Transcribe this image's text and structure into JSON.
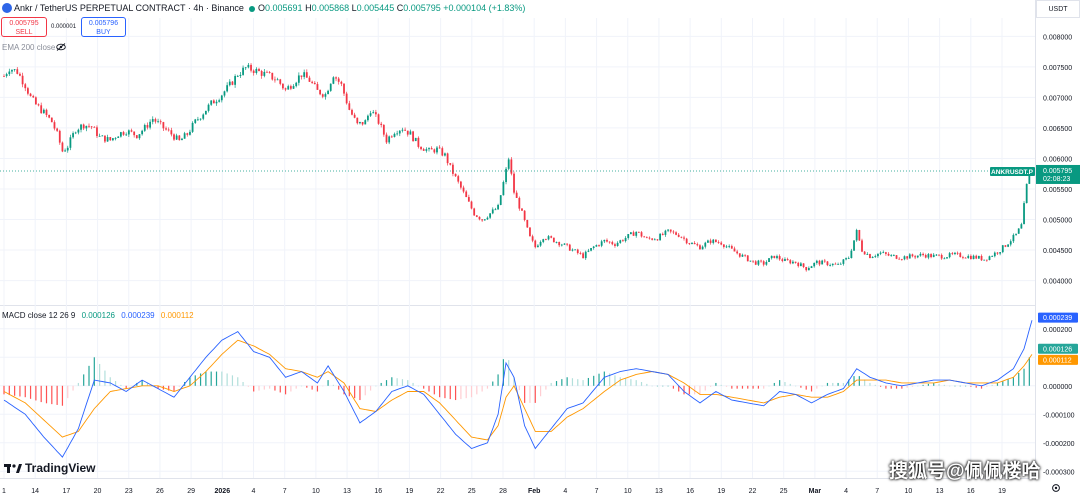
{
  "header": {
    "title": "Ankr / TetherUS PERPETUAL CONTRACT · 4h · Binance",
    "ohlc": [
      {
        "label": "O",
        "value": "0.005691"
      },
      {
        "label": "H",
        "value": "0.005868"
      },
      {
        "label": "L",
        "value": "0.005445"
      },
      {
        "label": "C",
        "value": "0.005795"
      }
    ],
    "change": "+0.000104 (+1.83%)"
  },
  "trade": {
    "sell_price": "0.005795",
    "sell_label": "SELL",
    "spread": "0.000001",
    "buy_price": "0.005796",
    "buy_label": "BUY"
  },
  "ema_label": "EMA 200 close",
  "currency": "USDT",
  "macd_legend": {
    "label": "MACD close 12 26 9",
    "histogram": "0.000126",
    "macd": "0.000239",
    "signal": "0.000112"
  },
  "brand": "TradingView",
  "watermark": "搜狐号@佩佩楼哈",
  "colors": {
    "up": "#089981",
    "down": "#f23645",
    "macd": "#2962ff",
    "signal": "#ff9800",
    "grid": "#f0f3fa",
    "text": "#131722"
  },
  "chart_data": {
    "type": "candlestick",
    "timeframe": "4h",
    "price_axis": {
      "ticks": [
        "0.008000",
        "0.007500",
        "0.007000",
        "0.006500",
        "0.006000",
        "0.005500",
        "0.005000",
        "0.004500",
        "0.004000"
      ],
      "range": [
        0.0036,
        0.0083
      ],
      "last_price_label": "0.005795",
      "symbol_label": "ANKRUSDT.P",
      "countdown": "02:08:23"
    },
    "time_axis": {
      "ticks": [
        "1",
        "14",
        "17",
        "20",
        "23",
        "26",
        "29",
        "2026",
        "4",
        "7",
        "10",
        "13",
        "16",
        "19",
        "22",
        "25",
        "28",
        "Feb",
        "4",
        "7",
        "10",
        "13",
        "16",
        "19",
        "22",
        "25",
        "Mar",
        "4",
        "7",
        "10",
        "13",
        "16",
        "19"
      ]
    },
    "price_path": [
      [
        0,
        0.00735
      ],
      [
        2,
        0.00748
      ],
      [
        5,
        0.00742
      ],
      [
        8,
        0.0072
      ],
      [
        10,
        0.007
      ],
      [
        12,
        0.00688
      ],
      [
        15,
        0.00675
      ],
      [
        18,
        0.0066
      ],
      [
        20,
        0.0064
      ],
      [
        22,
        0.00612
      ],
      [
        24,
        0.0062
      ],
      [
        27,
        0.00648
      ],
      [
        30,
        0.00655
      ],
      [
        33,
        0.00652
      ],
      [
        36,
        0.00635
      ],
      [
        40,
        0.0063
      ],
      [
        43,
        0.0064
      ],
      [
        46,
        0.00645
      ],
      [
        50,
        0.00638
      ],
      [
        53,
        0.0065
      ],
      [
        56,
        0.00665
      ],
      [
        60,
        0.0065
      ],
      [
        63,
        0.0064
      ],
      [
        66,
        0.00628
      ],
      [
        69,
        0.0064
      ],
      [
        72,
        0.0066
      ],
      [
        75,
        0.00675
      ],
      [
        78,
        0.0069
      ],
      [
        82,
        0.00705
      ],
      [
        85,
        0.0072
      ],
      [
        88,
        0.00738
      ],
      [
        91,
        0.00748
      ],
      [
        94,
        0.00745
      ],
      [
        97,
        0.0074
      ],
      [
        100,
        0.00735
      ],
      [
        103,
        0.00728
      ],
      [
        106,
        0.00712
      ],
      [
        109,
        0.00725
      ],
      [
        112,
        0.00738
      ],
      [
        115,
        0.00728
      ],
      [
        118,
        0.0071
      ],
      [
        121,
        0.00705
      ],
      [
        124,
        0.00738
      ],
      [
        127,
        0.0072
      ],
      [
        130,
        0.0068
      ],
      [
        133,
        0.00655
      ],
      [
        136,
        0.0066
      ],
      [
        138,
        0.0068
      ],
      [
        141,
        0.0066
      ],
      [
        144,
        0.0063
      ],
      [
        147,
        0.00645
      ],
      [
        150,
        0.0065
      ],
      [
        153,
        0.0064
      ],
      [
        156,
        0.00622
      ],
      [
        160,
        0.00612
      ],
      [
        163,
        0.00615
      ],
      [
        166,
        0.00605
      ],
      [
        168,
        0.00585
      ],
      [
        171,
        0.0056
      ],
      [
        174,
        0.00535
      ],
      [
        177,
        0.0051
      ],
      [
        180,
        0.005
      ],
      [
        183,
        0.0051
      ],
      [
        186,
        0.0052
      ],
      [
        188,
        0.0056
      ],
      [
        190,
        0.006
      ],
      [
        192,
        0.00545
      ],
      [
        195,
        0.0051
      ],
      [
        198,
        0.0047
      ],
      [
        200,
        0.00455
      ],
      [
        203,
        0.00472
      ],
      [
        206,
        0.00468
      ],
      [
        210,
        0.0046
      ],
      [
        214,
        0.0045
      ],
      [
        218,
        0.0044
      ],
      [
        222,
        0.00455
      ],
      [
        226,
        0.00465
      ],
      [
        230,
        0.0046
      ],
      [
        234,
        0.0047
      ],
      [
        238,
        0.0048
      ],
      [
        242,
        0.00468
      ],
      [
        246,
        0.0047
      ],
      [
        250,
        0.0048
      ],
      [
        254,
        0.00475
      ],
      [
        258,
        0.00462
      ],
      [
        262,
        0.00455
      ],
      [
        266,
        0.00465
      ],
      [
        270,
        0.00462
      ],
      [
        274,
        0.0045
      ],
      [
        278,
        0.0044
      ],
      [
        282,
        0.0043
      ],
      [
        286,
        0.00428
      ],
      [
        290,
        0.0044
      ],
      [
        294,
        0.00432
      ],
      [
        298,
        0.0043
      ],
      [
        302,
        0.0042
      ],
      [
        306,
        0.0043
      ],
      [
        310,
        0.00428
      ],
      [
        314,
        0.00425
      ],
      [
        318,
        0.00438
      ],
      [
        321,
        0.0048
      ],
      [
        323,
        0.0045
      ],
      [
        326,
        0.0044
      ],
      [
        330,
        0.00445
      ],
      [
        334,
        0.0044
      ],
      [
        338,
        0.00438
      ],
      [
        342,
        0.0044
      ],
      [
        346,
        0.00442
      ],
      [
        350,
        0.0044
      ],
      [
        354,
        0.0044
      ],
      [
        358,
        0.00442
      ],
      [
        362,
        0.0044
      ],
      [
        366,
        0.00438
      ],
      [
        369,
        0.00435
      ],
      [
        372,
        0.00442
      ],
      [
        375,
        0.0045
      ],
      [
        378,
        0.00462
      ],
      [
        381,
        0.00475
      ],
      [
        383,
        0.0049
      ],
      [
        385,
        0.00555
      ],
      [
        386,
        0.00575
      ],
      [
        387,
        0.0058
      ]
    ],
    "macd_axis": {
      "ticks": [
        "0.000200",
        "0.000100",
        "0.000000",
        "-0.000100",
        "-0.000200",
        "-0.000300"
      ],
      "range": [
        -0.00032,
        0.00028
      ]
    },
    "macd_line": [
      [
        0,
        -5e-05
      ],
      [
        8,
        -0.0001
      ],
      [
        15,
        -0.00018
      ],
      [
        22,
        -0.00025
      ],
      [
        28,
        -0.00015
      ],
      [
        34,
        2e-05
      ],
      [
        40,
        1e-05
      ],
      [
        46,
        -2e-05
      ],
      [
        52,
        2e-05
      ],
      [
        58,
        -1e-05
      ],
      [
        64,
        -4e-05
      ],
      [
        70,
        3e-05
      ],
      [
        76,
        0.0001
      ],
      [
        82,
        0.00016
      ],
      [
        88,
        0.00019
      ],
      [
        94,
        0.00012
      ],
      [
        100,
        0.0001
      ],
      [
        106,
        3e-05
      ],
      [
        112,
        5e-05
      ],
      [
        118,
        1e-05
      ],
      [
        122,
        7e-05
      ],
      [
        128,
        -2e-05
      ],
      [
        134,
        -0.00013
      ],
      [
        140,
        -9e-05
      ],
      [
        146,
        -2e-05
      ],
      [
        152,
        0.0
      ],
      [
        158,
        -3e-05
      ],
      [
        164,
        -0.0001
      ],
      [
        170,
        -0.00017
      ],
      [
        176,
        -0.00022
      ],
      [
        182,
        -0.0002
      ],
      [
        186,
        -0.0001
      ],
      [
        189,
        8e-05
      ],
      [
        192,
        3e-05
      ],
      [
        196,
        -0.00014
      ],
      [
        200,
        -0.00022
      ],
      [
        206,
        -0.00015
      ],
      [
        212,
        -8e-05
      ],
      [
        218,
        -6e-05
      ],
      [
        226,
        3e-05
      ],
      [
        232,
        5e-05
      ],
      [
        238,
        6e-05
      ],
      [
        244,
        5e-05
      ],
      [
        250,
        4e-05
      ],
      [
        256,
        -2e-05
      ],
      [
        262,
        -6e-05
      ],
      [
        268,
        -2e-05
      ],
      [
        274,
        -5e-05
      ],
      [
        280,
        -6e-05
      ],
      [
        286,
        -7e-05
      ],
      [
        292,
        -2e-05
      ],
      [
        298,
        -3e-05
      ],
      [
        304,
        -6e-05
      ],
      [
        310,
        -3e-05
      ],
      [
        316,
        -1e-05
      ],
      [
        321,
        6e-05
      ],
      [
        326,
        3e-05
      ],
      [
        332,
        1e-05
      ],
      [
        338,
        0.0
      ],
      [
        344,
        1e-05
      ],
      [
        350,
        2e-05
      ],
      [
        356,
        2e-05
      ],
      [
        362,
        1e-05
      ],
      [
        368,
        0.0
      ],
      [
        374,
        2e-05
      ],
      [
        380,
        6e-05
      ],
      [
        384,
        0.00013
      ],
      [
        387,
        0.00023
      ]
    ],
    "signal_line": [
      [
        0,
        -2e-05
      ],
      [
        8,
        -6e-05
      ],
      [
        15,
        -0.00012
      ],
      [
        22,
        -0.00018
      ],
      [
        28,
        -0.00016
      ],
      [
        34,
        -8e-05
      ],
      [
        40,
        -2e-05
      ],
      [
        46,
        -1e-05
      ],
      [
        52,
        0.0
      ],
      [
        58,
        0.0
      ],
      [
        64,
        -2e-05
      ],
      [
        70,
        0.0
      ],
      [
        76,
        5e-05
      ],
      [
        82,
        0.00011
      ],
      [
        88,
        0.00016
      ],
      [
        94,
        0.00014
      ],
      [
        100,
        0.00011
      ],
      [
        106,
        6e-05
      ],
      [
        112,
        5e-05
      ],
      [
        118,
        3e-05
      ],
      [
        122,
        5e-05
      ],
      [
        128,
        1e-05
      ],
      [
        134,
        -8e-05
      ],
      [
        140,
        -9e-05
      ],
      [
        146,
        -5e-05
      ],
      [
        152,
        -2e-05
      ],
      [
        158,
        -2e-05
      ],
      [
        164,
        -6e-05
      ],
      [
        170,
        -0.00012
      ],
      [
        176,
        -0.00018
      ],
      [
        182,
        -0.00019
      ],
      [
        186,
        -0.00014
      ],
      [
        189,
        -4e-05
      ],
      [
        192,
        0.0
      ],
      [
        196,
        -8e-05
      ],
      [
        200,
        -0.00016
      ],
      [
        206,
        -0.00016
      ],
      [
        212,
        -0.00011
      ],
      [
        218,
        -8e-05
      ],
      [
        226,
        -2e-05
      ],
      [
        232,
        2e-05
      ],
      [
        238,
        4e-05
      ],
      [
        244,
        5e-05
      ],
      [
        250,
        4e-05
      ],
      [
        256,
        1e-05
      ],
      [
        262,
        -3e-05
      ],
      [
        268,
        -3e-05
      ],
      [
        274,
        -4e-05
      ],
      [
        280,
        -5e-05
      ],
      [
        286,
        -6e-05
      ],
      [
        292,
        -4e-05
      ],
      [
        298,
        -3e-05
      ],
      [
        304,
        -4e-05
      ],
      [
        310,
        -4e-05
      ],
      [
        316,
        -2e-05
      ],
      [
        321,
        2e-05
      ],
      [
        326,
        2e-05
      ],
      [
        332,
        2e-05
      ],
      [
        338,
        1e-05
      ],
      [
        344,
        1e-05
      ],
      [
        350,
        1e-05
      ],
      [
        356,
        2e-05
      ],
      [
        362,
        1e-05
      ],
      [
        368,
        1e-05
      ],
      [
        374,
        1e-05
      ],
      [
        380,
        3e-05
      ],
      [
        384,
        7e-05
      ],
      [
        387,
        0.00011
      ]
    ]
  }
}
